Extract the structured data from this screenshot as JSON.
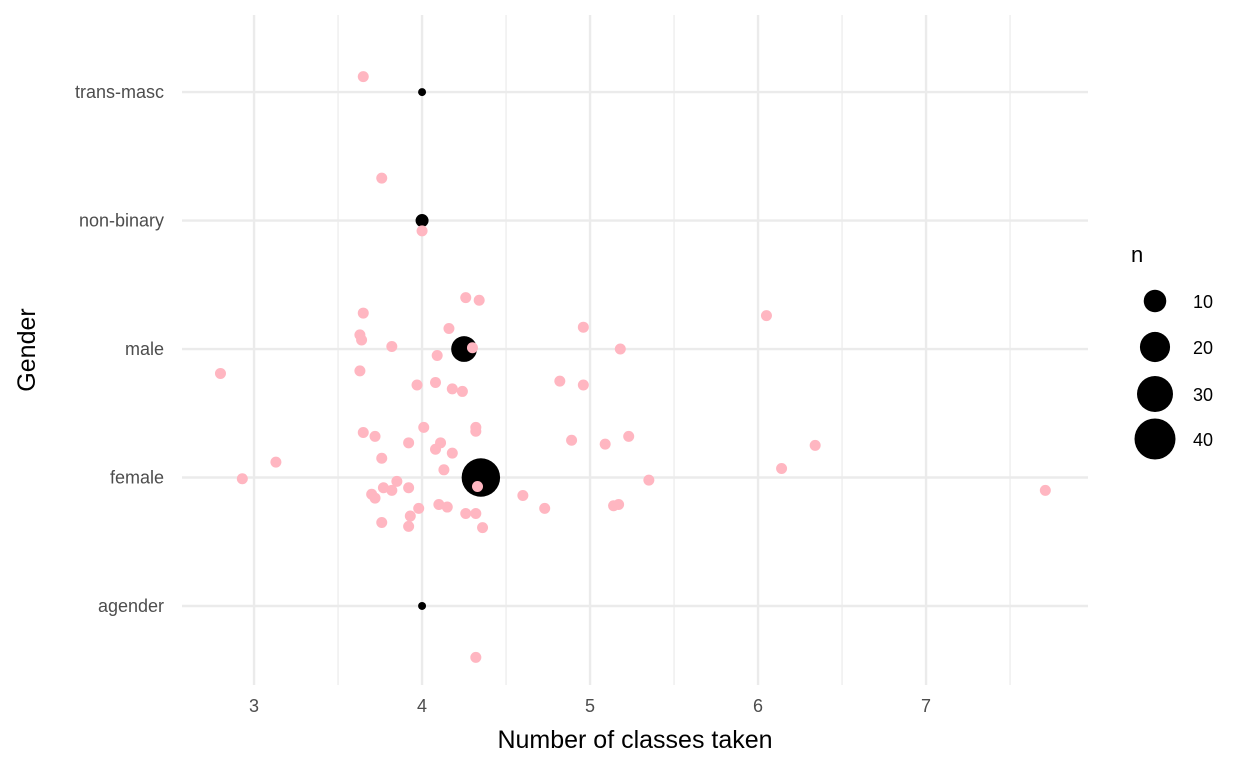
{
  "chart_data": {
    "type": "scatter",
    "xlabel": "Number of classes taken",
    "ylabel": "Gender",
    "xlim": [
      2.571,
      7.964
    ],
    "x_ticks": [
      3,
      4,
      5,
      6,
      7
    ],
    "categories": [
      "agender",
      "female",
      "male",
      "non-binary",
      "trans-masc"
    ],
    "ylim": [
      0.385,
      5.6
    ],
    "grid": true,
    "colors": {
      "jitter": "#FFB6C1",
      "summary": "#000000",
      "grid": "#EBEBEB"
    },
    "legend": {
      "title": "n",
      "position": "right",
      "entries": [
        10,
        20,
        30,
        40
      ]
    },
    "summary_points": [
      {
        "category": "trans-masc",
        "x": 4.0,
        "n": 1
      },
      {
        "category": "non-binary",
        "x": 4.0,
        "n": 4
      },
      {
        "category": "male",
        "x": 4.25,
        "n": 18
      },
      {
        "category": "female",
        "x": 4.35,
        "n": 41
      },
      {
        "category": "agender",
        "x": 4.0,
        "n": 1
      }
    ],
    "jitter_points": [
      [
        3.65,
        5.12
      ],
      [
        3.76,
        4.33
      ],
      [
        4.0,
        3.92
      ],
      [
        4.26,
        3.4
      ],
      [
        4.34,
        3.38
      ],
      [
        3.65,
        3.28
      ],
      [
        6.05,
        3.26
      ],
      [
        4.96,
        3.17
      ],
      [
        4.16,
        3.16
      ],
      [
        3.63,
        3.11
      ],
      [
        3.64,
        3.07
      ],
      [
        3.82,
        3.02
      ],
      [
        4.3,
        3.01
      ],
      [
        5.18,
        3.0
      ],
      [
        4.09,
        2.95
      ],
      [
        3.63,
        2.83
      ],
      [
        2.8,
        2.81
      ],
      [
        4.82,
        2.75
      ],
      [
        4.08,
        2.74
      ],
      [
        3.97,
        2.72
      ],
      [
        4.96,
        2.72
      ],
      [
        4.18,
        2.69
      ],
      [
        4.24,
        2.67
      ],
      [
        4.01,
        2.39
      ],
      [
        4.32,
        2.39
      ],
      [
        4.32,
        2.36
      ],
      [
        3.65,
        2.35
      ],
      [
        3.72,
        2.32
      ],
      [
        5.23,
        2.32
      ],
      [
        4.89,
        2.29
      ],
      [
        3.92,
        2.27
      ],
      [
        4.11,
        2.27
      ],
      [
        6.34,
        2.25
      ],
      [
        5.09,
        2.26
      ],
      [
        4.08,
        2.22
      ],
      [
        4.18,
        2.19
      ],
      [
        3.76,
        2.15
      ],
      [
        3.13,
        2.12
      ],
      [
        6.14,
        2.07
      ],
      [
        4.13,
        2.06
      ],
      [
        2.93,
        1.99
      ],
      [
        5.35,
        1.98
      ],
      [
        3.85,
        1.97
      ],
      [
        4.33,
        1.93
      ],
      [
        3.77,
        1.92
      ],
      [
        3.92,
        1.92
      ],
      [
        3.82,
        1.9
      ],
      [
        7.71,
        1.9
      ],
      [
        4.6,
        1.86
      ],
      [
        3.7,
        1.87
      ],
      [
        3.72,
        1.84
      ],
      [
        4.1,
        1.79
      ],
      [
        5.17,
        1.79
      ],
      [
        5.14,
        1.78
      ],
      [
        4.15,
        1.77
      ],
      [
        3.98,
        1.76
      ],
      [
        4.73,
        1.76
      ],
      [
        4.26,
        1.72
      ],
      [
        4.32,
        1.72
      ],
      [
        3.93,
        1.7
      ],
      [
        3.76,
        1.65
      ],
      [
        3.92,
        1.62
      ],
      [
        4.36,
        1.61
      ],
      [
        4.32,
        0.6
      ]
    ]
  }
}
